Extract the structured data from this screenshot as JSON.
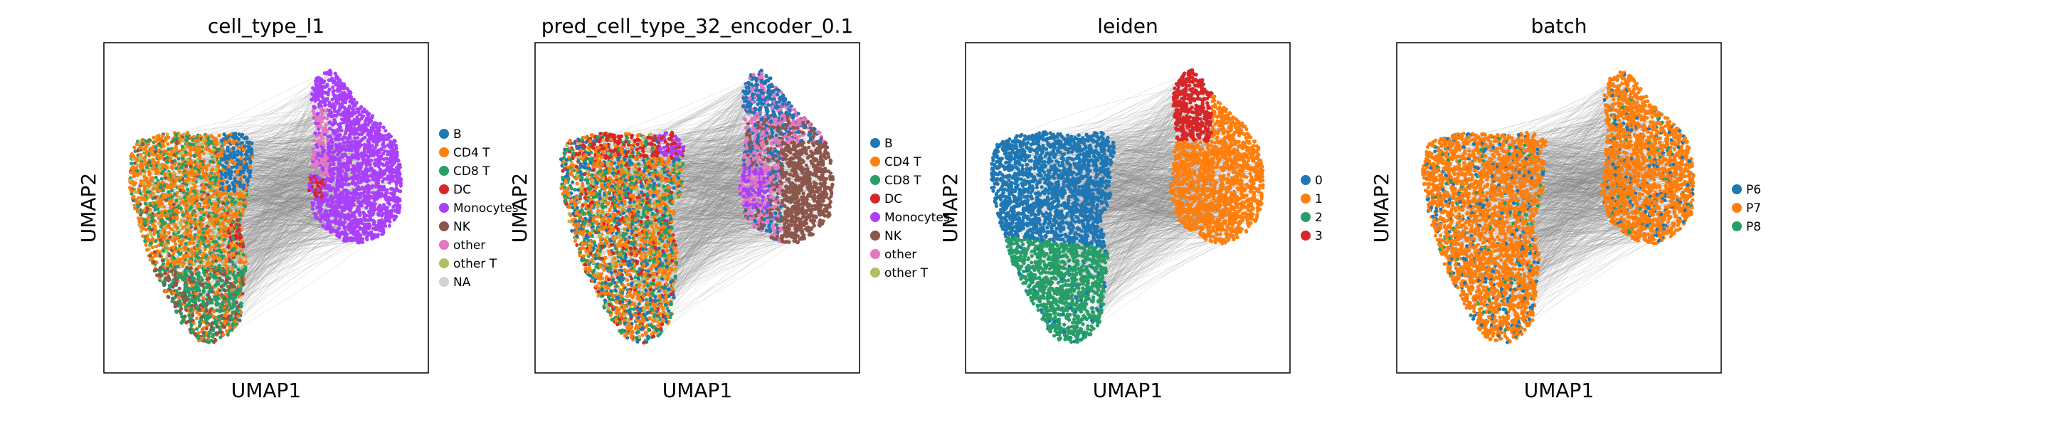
{
  "figure": {
    "panels": [
      {
        "title": "cell_type_l1",
        "xlabel": "UMAP1",
        "ylabel": "UMAP2",
        "legend": [
          {
            "label": "B",
            "color": "#1f77b4"
          },
          {
            "label": "CD4 T",
            "color": "#ff7f0e"
          },
          {
            "label": "CD8 T",
            "color": "#279e68"
          },
          {
            "label": "DC",
            "color": "#d62728"
          },
          {
            "label": "Monocytes",
            "color": "#aa40fc"
          },
          {
            "label": "NK",
            "color": "#8c564b"
          },
          {
            "label": "other",
            "color": "#e377c2"
          },
          {
            "label": "other T",
            "color": "#b5bd61"
          },
          {
            "label": "NA",
            "color": "#d3d3d3"
          }
        ]
      },
      {
        "title": "pred_cell_type_32_encoder_0.1",
        "xlabel": "UMAP1",
        "ylabel": "UMAP2",
        "legend": [
          {
            "label": "B",
            "color": "#1f77b4"
          },
          {
            "label": "CD4 T",
            "color": "#ff7f0e"
          },
          {
            "label": "CD8 T",
            "color": "#279e68"
          },
          {
            "label": "DC",
            "color": "#d62728"
          },
          {
            "label": "Monocytes",
            "color": "#aa40fc"
          },
          {
            "label": "NK",
            "color": "#8c564b"
          },
          {
            "label": "other",
            "color": "#e377c2"
          },
          {
            "label": "other T",
            "color": "#b5bd61"
          }
        ]
      },
      {
        "title": "leiden",
        "xlabel": "UMAP1",
        "ylabel": "UMAP2",
        "legend": [
          {
            "label": "0",
            "color": "#1f77b4"
          },
          {
            "label": "1",
            "color": "#ff7f0e"
          },
          {
            "label": "2",
            "color": "#279e68"
          },
          {
            "label": "3",
            "color": "#d62728"
          }
        ]
      },
      {
        "title": "batch",
        "xlabel": "UMAP1",
        "ylabel": "UMAP2",
        "legend": [
          {
            "label": "P6",
            "color": "#1f77b4"
          },
          {
            "label": "P7",
            "color": "#ff7f0e"
          },
          {
            "label": "P8",
            "color": "#279e68"
          }
        ]
      }
    ]
  },
  "chart_data": [
    {
      "type": "scatter",
      "title": "cell_type_l1",
      "xlabel": "UMAP1",
      "ylabel": "UMAP2",
      "series": [
        {
          "name": "B"
        },
        {
          "name": "CD4 T"
        },
        {
          "name": "CD8 T"
        },
        {
          "name": "DC"
        },
        {
          "name": "Monocytes"
        },
        {
          "name": "NK"
        },
        {
          "name": "other"
        },
        {
          "name": "other T"
        },
        {
          "name": "NA"
        }
      ],
      "legend_position": "right"
    },
    {
      "type": "scatter",
      "title": "pred_cell_type_32_encoder_0.1",
      "xlabel": "UMAP1",
      "ylabel": "UMAP2",
      "series": [
        {
          "name": "B"
        },
        {
          "name": "CD4 T"
        },
        {
          "name": "CD8 T"
        },
        {
          "name": "DC"
        },
        {
          "name": "Monocytes"
        },
        {
          "name": "NK"
        },
        {
          "name": "other"
        },
        {
          "name": "other T"
        }
      ],
      "legend_position": "right"
    },
    {
      "type": "scatter",
      "title": "leiden",
      "xlabel": "UMAP1",
      "ylabel": "UMAP2",
      "series": [
        {
          "name": "0"
        },
        {
          "name": "1"
        },
        {
          "name": "2"
        },
        {
          "name": "3"
        }
      ],
      "legend_position": "right"
    },
    {
      "type": "scatter",
      "title": "batch",
      "xlabel": "UMAP1",
      "ylabel": "UMAP2",
      "series": [
        {
          "name": "P6"
        },
        {
          "name": "P7"
        },
        {
          "name": "P8"
        }
      ],
      "legend_position": "right"
    }
  ]
}
